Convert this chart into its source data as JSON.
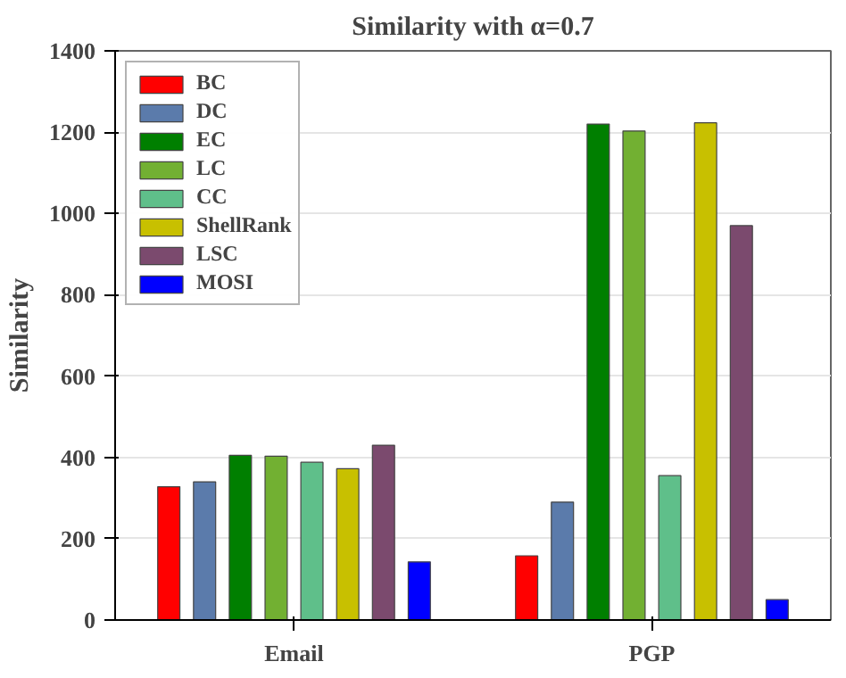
{
  "chart_data": {
    "type": "bar",
    "title": "Similarity with α=0.7",
    "ylabel": "Similarity",
    "categories": [
      "Email",
      "PGP"
    ],
    "series": [
      {
        "name": "BC",
        "color": "#ff0000",
        "values": [
          328,
          158
        ]
      },
      {
        "name": "DC",
        "color": "#5b7bab",
        "values": [
          340,
          290
        ]
      },
      {
        "name": "EC",
        "color": "#007f00",
        "values": [
          405,
          1220
        ]
      },
      {
        "name": "LC",
        "color": "#72b032",
        "values": [
          403,
          1203
        ]
      },
      {
        "name": "CC",
        "color": "#5fbf8a",
        "values": [
          388,
          355
        ]
      },
      {
        "name": "ShellRank",
        "color": "#c8c000",
        "values": [
          372,
          1223
        ]
      },
      {
        "name": "LSC",
        "color": "#7b4a6e",
        "values": [
          430,
          970
        ]
      },
      {
        "name": "MOSI",
        "color": "#0000ff",
        "values": [
          143,
          50
        ]
      }
    ],
    "ylim": [
      0,
      1400
    ],
    "yticks": [
      0,
      200,
      400,
      600,
      800,
      1000,
      1200,
      1400
    ],
    "grid": "y",
    "legend": "top left"
  }
}
